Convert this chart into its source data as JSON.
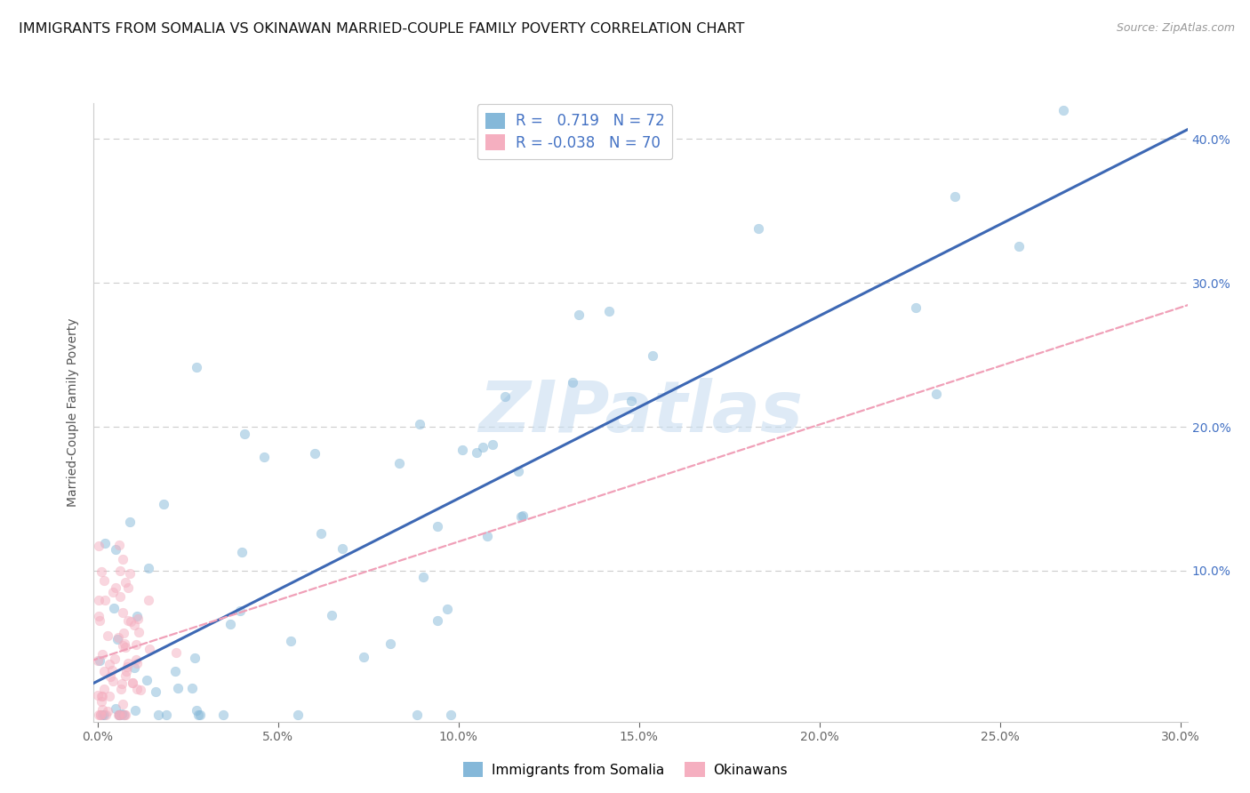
{
  "title": "IMMIGRANTS FROM SOMALIA VS OKINAWAN MARRIED-COUPLE FAMILY POVERTY CORRELATION CHART",
  "source": "Source: ZipAtlas.com",
  "ylabel": "Married-Couple Family Poverty",
  "watermark_text": "ZIPatlas",
  "xlim": [
    -0.001,
    0.302
  ],
  "ylim": [
    -0.005,
    0.425
  ],
  "xticks": [
    0.0,
    0.05,
    0.1,
    0.15,
    0.2,
    0.25,
    0.3
  ],
  "yticks": [
    0.0,
    0.1,
    0.2,
    0.3,
    0.4
  ],
  "xticklabels": [
    "0.0%",
    "5.0%",
    "10.0%",
    "15.0%",
    "20.0%",
    "25.0%",
    "30.0%"
  ],
  "yticklabels_right": [
    "",
    "10.0%",
    "20.0%",
    "30.0%",
    "40.0%"
  ],
  "grid_color": "#cccccc",
  "background_color": "#ffffff",
  "series1_color": "#85b8d9",
  "series2_color": "#f5afc0",
  "series1_label": "Immigrants from Somalia",
  "series2_label": "Okinawans",
  "r1": 0.719,
  "n1": 72,
  "r2": -0.038,
  "n2": 70,
  "line1_color": "#3d68b4",
  "line2_color": "#f0a0b8",
  "tick_color_right": "#4472c4",
  "tick_color_bottom": "#666666",
  "title_color": "#111111",
  "title_fontsize": 11.5,
  "source_color": "#999999",
  "seed": 42,
  "scatter_alpha": 0.5,
  "scatter_size": 60,
  "watermark_color": "#c8ddf0",
  "watermark_alpha": 0.6,
  "watermark_fontsize": 58
}
